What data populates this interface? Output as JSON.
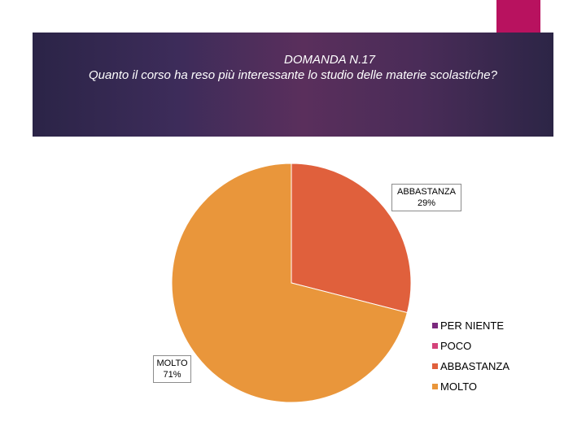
{
  "slide": {
    "title_line1": "DOMANDA N.17",
    "title_line2": "Quanto il corso ha reso più interessante lo studio delle materie scolastiche?"
  },
  "colors": {
    "accent": "#b8125f",
    "banner": "#4a2c58"
  },
  "chart_data": {
    "type": "pie",
    "title": "DOMANDA N.17 Quanto il corso ha reso più interessante lo studio delle materie scolastiche?",
    "categories": [
      "PER NIENTE",
      "POCO",
      "ABBASTANZA",
      "MOLTO"
    ],
    "values": [
      0,
      0,
      29,
      71
    ],
    "unit": "%",
    "colors": [
      "#7b2a7e",
      "#d4437a",
      "#e0603c",
      "#e9963b"
    ],
    "data_labels": [
      {
        "category": "ABBASTANZA",
        "text": "29%"
      },
      {
        "category": "MOLTO",
        "text": "71%"
      }
    ],
    "legend_position": "right"
  }
}
